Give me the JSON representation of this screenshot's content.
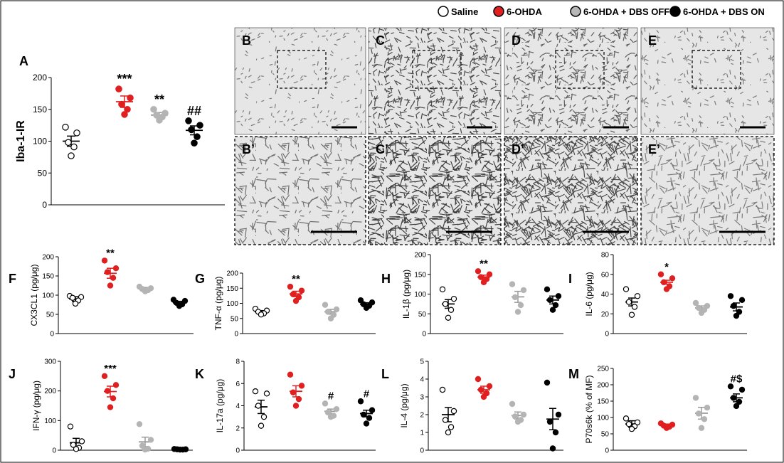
{
  "legend": {
    "entries": [
      {
        "label": "Saline",
        "color": "#ffffff"
      },
      {
        "label": "6-OHDA",
        "color": "#e02020"
      },
      {
        "label": "6-OHDA + DBS OFF",
        "color": "#b8b8b8"
      },
      {
        "label": "6-OHDA + DBS ON",
        "color": "#000000"
      }
    ]
  },
  "micrograph_labels": [
    "B",
    "C",
    "D",
    "E",
    "B’",
    "C’",
    "D’",
    "E’"
  ],
  "group_colors": [
    "#ffffff",
    "#e02020",
    "#b4b4b4",
    "#000000"
  ],
  "chart_data": [
    {
      "type": "scatter",
      "panel": "A",
      "ylabel": "Iba-1-IR",
      "ylim": [
        0,
        200
      ],
      "yticks": [
        0,
        50,
        100,
        150,
        200
      ],
      "groups": [
        {
          "mean": 100,
          "sem": 8,
          "points": [
            122,
            113,
            98,
            91,
            77
          ]
        },
        {
          "mean": 162,
          "sem": 9,
          "points": [
            182,
            168,
            158,
            150,
            142
          ]
        },
        {
          "mean": 141,
          "sem": 4,
          "points": [
            150,
            144,
            141,
            138,
            133
          ]
        },
        {
          "mean": 117,
          "sem": 7,
          "points": [
            132,
            125,
            118,
            107,
            97
          ]
        }
      ],
      "annotations": [
        {
          "group": 1,
          "text": "***"
        },
        {
          "group": 2,
          "text": "**"
        },
        {
          "group": 3,
          "text": "##"
        }
      ]
    },
    {
      "type": "scatter",
      "panel": "F",
      "ylabel": "CX3CL1 (pg/μg)",
      "ylim": [
        0,
        200
      ],
      "yticks": [
        0,
        50,
        100,
        150,
        200
      ],
      "groups": [
        {
          "mean": 90,
          "sem": 6,
          "points": [
            98,
            95,
            93,
            86,
            78
          ]
        },
        {
          "mean": 157,
          "sem": 13,
          "points": [
            190,
            170,
            160,
            145,
            125
          ]
        },
        {
          "mean": 116,
          "sem": 4,
          "points": [
            122,
            118,
            116,
            113,
            110
          ]
        },
        {
          "mean": 80,
          "sem": 4,
          "points": [
            88,
            85,
            80,
            76,
            72
          ]
        }
      ],
      "annotations": [
        {
          "group": 1,
          "text": "**"
        }
      ]
    },
    {
      "type": "scatter",
      "panel": "G",
      "ylabel": "TNF-α (pg/μg)",
      "ylim": [
        0,
        200
      ],
      "yticks": [
        0,
        50,
        100,
        150,
        200
      ],
      "groups": [
        {
          "mean": 72,
          "sem": 4,
          "points": [
            82,
            76,
            72,
            67,
            63
          ]
        },
        {
          "mean": 131,
          "sem": 9,
          "points": [
            155,
            142,
            130,
            120,
            108
          ]
        },
        {
          "mean": 72,
          "sem": 8,
          "points": [
            95,
            80,
            72,
            62,
            50
          ]
        },
        {
          "mean": 97,
          "sem": 5,
          "points": [
            110,
            103,
            97,
            92,
            85
          ]
        }
      ],
      "annotations": [
        {
          "group": 1,
          "text": "**"
        }
      ]
    },
    {
      "type": "scatter",
      "panel": "H",
      "ylabel": "IL-1β (pg/μg)",
      "ylim": [
        0,
        200
      ],
      "yticks": [
        0,
        50,
        100,
        150,
        200
      ],
      "groups": [
        {
          "mean": 75,
          "sem": 11,
          "points": [
            112,
            88,
            75,
            60,
            40
          ]
        },
        {
          "mean": 143,
          "sem": 5,
          "points": [
            158,
            150,
            143,
            138,
            130
          ]
        },
        {
          "mean": 93,
          "sem": 14,
          "points": [
            125,
            110,
            92,
            72,
            55
          ]
        },
        {
          "mean": 85,
          "sem": 10,
          "points": [
            112,
            95,
            85,
            72,
            60
          ]
        }
      ],
      "annotations": [
        {
          "group": 1,
          "text": "**"
        }
      ]
    },
    {
      "type": "scatter",
      "panel": "I",
      "ylabel": "IL-6 (pg/μg)",
      "ylim": [
        0,
        80
      ],
      "yticks": [
        0,
        20,
        40,
        60,
        80
      ],
      "groups": [
        {
          "mean": 32,
          "sem": 4,
          "points": [
            45,
            38,
            32,
            27,
            19
          ]
        },
        {
          "mean": 52,
          "sem": 2,
          "points": [
            60,
            56,
            52,
            48,
            45
          ]
        },
        {
          "mean": 26,
          "sem": 2,
          "points": [
            31,
            28,
            26,
            24,
            21
          ]
        },
        {
          "mean": 27,
          "sem": 4,
          "points": [
            38,
            34,
            28,
            22,
            18
          ]
        }
      ],
      "annotations": [
        {
          "group": 1,
          "text": "*"
        }
      ]
    },
    {
      "type": "scatter",
      "panel": "J",
      "ylabel": "IFN-γ (pg/μg)",
      "ylim": [
        0,
        300
      ],
      "yticks": [
        0,
        100,
        200,
        300
      ],
      "groups": [
        {
          "mean": 25,
          "sem": 15,
          "points": [
            80,
            30,
            18,
            8,
            4
          ]
        },
        {
          "mean": 198,
          "sem": 18,
          "points": [
            250,
            220,
            200,
            175,
            145
          ]
        },
        {
          "mean": 28,
          "sem": 16,
          "points": [
            88,
            35,
            15,
            5,
            2
          ]
        },
        {
          "mean": 3,
          "sem": 1,
          "points": [
            4,
            3,
            3,
            2,
            2
          ]
        }
      ],
      "annotations": [
        {
          "group": 1,
          "text": "***"
        }
      ]
    },
    {
      "type": "scatter",
      "panel": "K",
      "ylabel": "IL-17a (pg/μg)",
      "ylim": [
        0,
        8
      ],
      "yticks": [
        0,
        2,
        4,
        6,
        8
      ],
      "groups": [
        {
          "mean": 3.9,
          "sem": 0.6,
          "points": [
            5.3,
            5.1,
            4.0,
            3.0,
            2.2
          ]
        },
        {
          "mean": 5.3,
          "sem": 0.5,
          "points": [
            6.8,
            5.8,
            5.2,
            4.6,
            4.0
          ]
        },
        {
          "mean": 3.5,
          "sem": 0.2,
          "points": [
            4.2,
            3.7,
            3.4,
            3.1,
            3.0
          ]
        },
        {
          "mean": 3.3,
          "sem": 0.3,
          "points": [
            4.4,
            3.6,
            3.2,
            2.9,
            2.4
          ]
        }
      ],
      "annotations": [
        {
          "group": 2,
          "text": "#"
        },
        {
          "group": 3,
          "text": "#"
        }
      ]
    },
    {
      "type": "scatter",
      "panel": "L",
      "ylabel": "IL-4 (pg/μg)",
      "ylim": [
        0,
        5
      ],
      "yticks": [
        0,
        1,
        2,
        3,
        4,
        5
      ],
      "groups": [
        {
          "mean": 2.0,
          "sem": 0.4,
          "points": [
            3.4,
            2.2,
            1.7,
            1.3,
            1.0
          ]
        },
        {
          "mean": 3.4,
          "sem": 0.2,
          "points": [
            4.0,
            3.6,
            3.4,
            3.2,
            3.0
          ]
        },
        {
          "mean": 1.95,
          "sem": 0.2,
          "points": [
            2.6,
            2.0,
            1.9,
            1.7,
            1.6
          ]
        },
        {
          "mean": 1.75,
          "sem": 0.6,
          "points": [
            3.8,
            2.0,
            1.6,
            1.0,
            0.1
          ]
        }
      ],
      "annotations": []
    },
    {
      "type": "scatter",
      "panel": "M",
      "ylabel": "P70s6k (% of MF)",
      "ylim": [
        0,
        250
      ],
      "yticks": [
        0,
        50,
        100,
        150,
        200,
        250
      ],
      "groups": [
        {
          "mean": 80,
          "sem": 10,
          "points": [
            97,
            85,
            80,
            73,
            65
          ]
        },
        {
          "mean": 75,
          "sem": 5,
          "points": [
            82,
            78,
            75,
            72,
            68
          ]
        },
        {
          "mean": 113,
          "sem": 18,
          "points": [
            160,
            130,
            112,
            95,
            68
          ]
        },
        {
          "mean": 160,
          "sem": 12,
          "points": [
            195,
            185,
            160,
            148,
            135
          ]
        }
      ],
      "annotations": [
        {
          "group": 3,
          "text": "#$"
        }
      ]
    }
  ]
}
